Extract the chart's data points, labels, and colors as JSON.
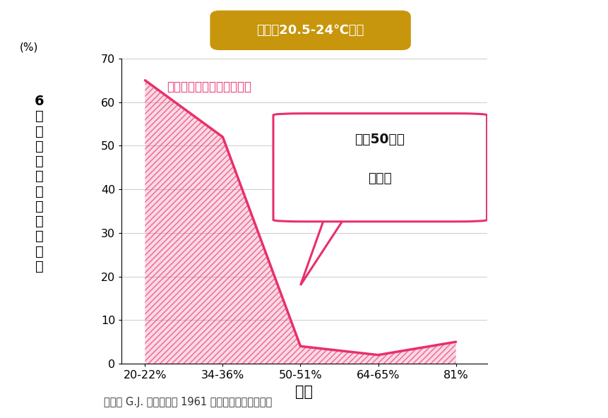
{
  "x_labels": [
    "20-22%",
    "34-36%",
    "50-51%",
    "64-65%",
    "81%"
  ],
  "x_positions": [
    0,
    1,
    2,
    3,
    4
  ],
  "y_values": [
    65,
    52,
    4,
    2,
    5
  ],
  "line_color": "#E8306A",
  "fill_color": "#E8306A",
  "fill_alpha": 0.18,
  "hatch": "////",
  "ylim": [
    0,
    70
  ],
  "yticks": [
    0,
    10,
    20,
    30,
    40,
    50,
    60,
    70
  ],
  "xlabel": "湿度",
  "ylabel_top": "(%)",
  "ylabel_chars": [
    "6",
    "時",
    "間",
    "後",
    "の",
    "ウ",
    "イ",
    "ル",
    "ス",
    "生",
    "存",
    "率"
  ],
  "title_box_text": "温度ぇ20.5-24℃の時",
  "title_box_color": "#C8960C",
  "title_box_text_color": "#FFFFFF",
  "annotation_text": "ウイルス感染しやすい環境",
  "annotation_color": "#E8306A",
  "bubble_text_line1": "湿度50％で",
  "bubble_text_line2": "大幅減",
  "bubble_color": "#E8306A",
  "source_text": "研究者 G.J. ハーパー氏 1961 年のデータを基に作成",
  "bg_color": "#FFFFFF",
  "line_width": 2.5,
  "grid_color": "#cccccc",
  "axis_color": "#333333"
}
